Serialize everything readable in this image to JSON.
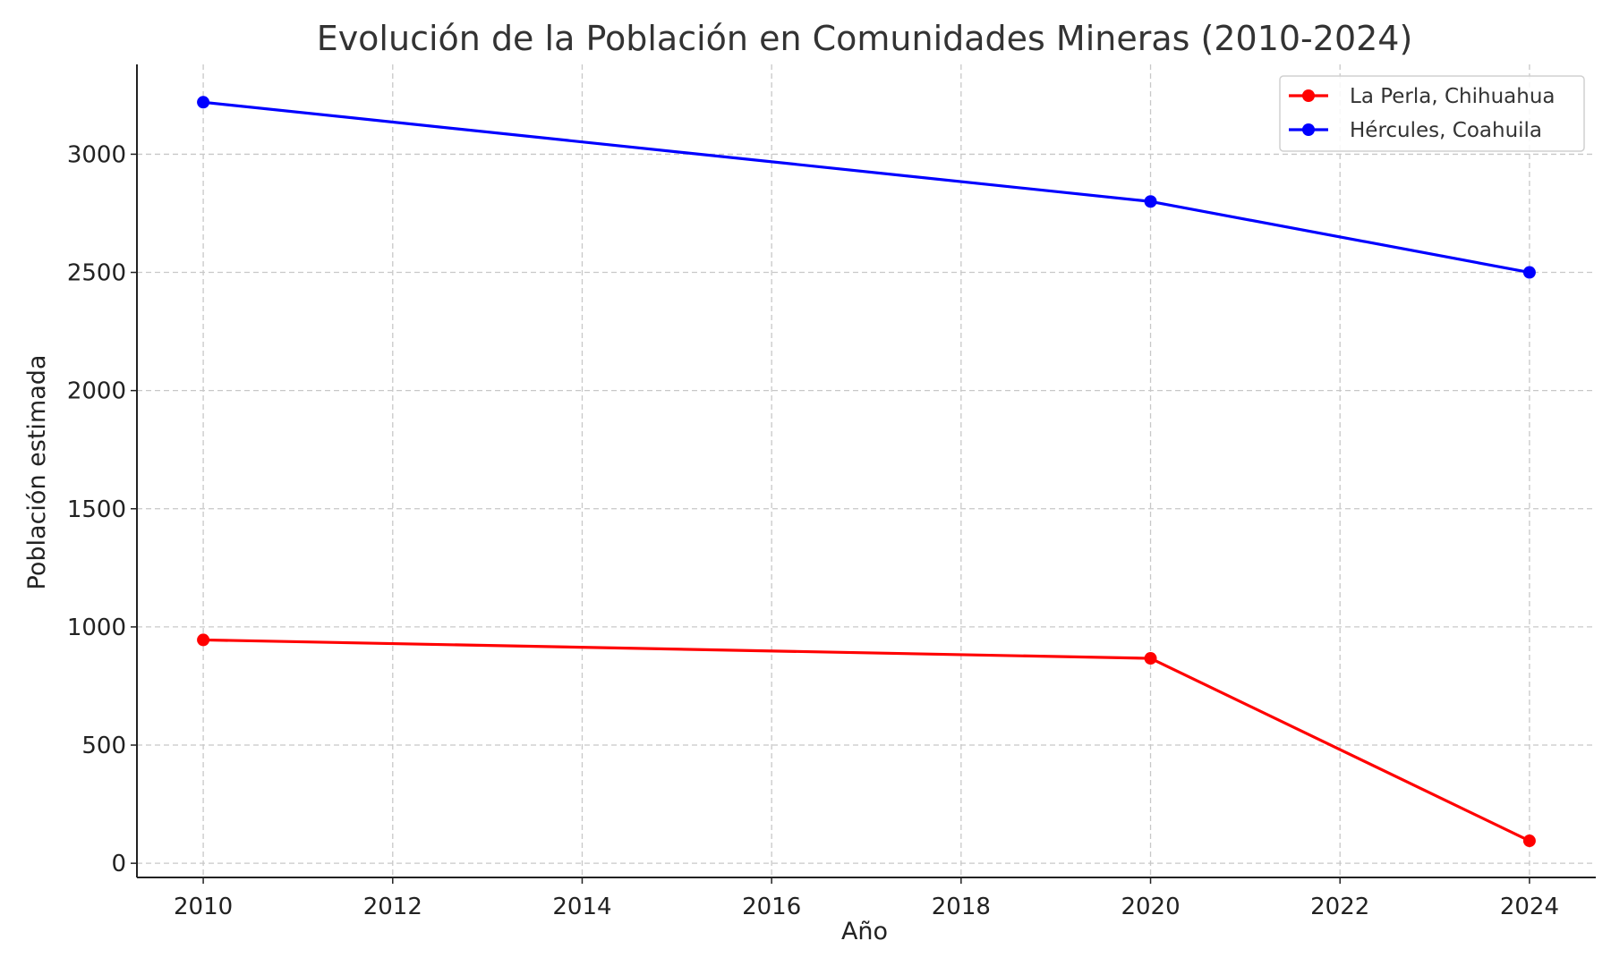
{
  "chart_data": {
    "type": "line",
    "title": "Evolución de la Población en Comunidades Mineras (2010-2024)",
    "xlabel": "Año",
    "ylabel": "Población estimada",
    "xlim": [
      2009.3,
      2024.7
    ],
    "ylim": [
      -60,
      3380
    ],
    "x_ticks": [
      2010,
      2012,
      2014,
      2016,
      2018,
      2020,
      2022,
      2024
    ],
    "y_ticks": [
      0,
      500,
      1000,
      1500,
      2000,
      2500,
      3000
    ],
    "grid": true,
    "legend_position": "top-right",
    "series": [
      {
        "name": "La Perla, Chihuahua",
        "color": "#ff0000",
        "marker": "circle",
        "x": [
          2010,
          2020,
          2024
        ],
        "y": [
          945,
          867,
          95
        ]
      },
      {
        "name": "Hércules, Coahuila",
        "color": "#0000ff",
        "marker": "circle",
        "x": [
          2010,
          2020,
          2024
        ],
        "y": [
          3220,
          2800,
          2500
        ]
      }
    ]
  }
}
